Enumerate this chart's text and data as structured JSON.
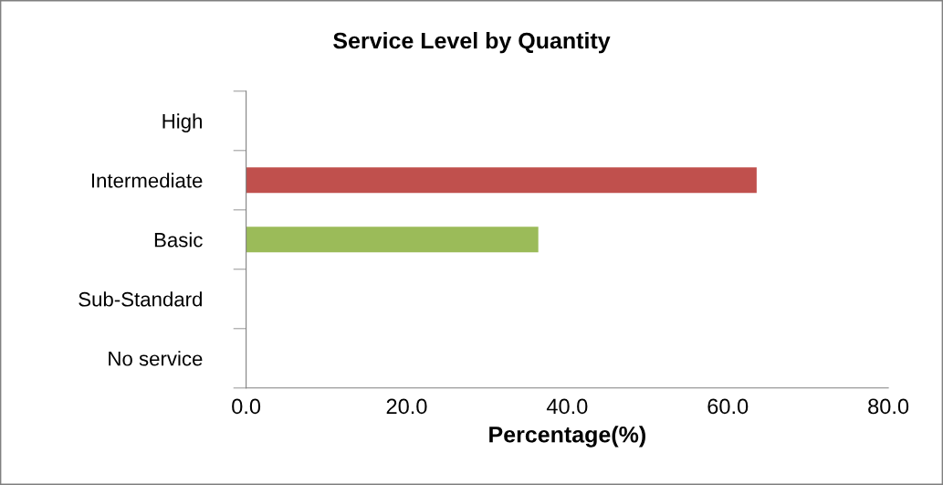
{
  "chart_data": {
    "type": "bar",
    "orientation": "horizontal",
    "title": "Service Level by Quantity",
    "xlabel": "Percentage(%)",
    "categories": [
      "High",
      "Intermediate",
      "Basic",
      "Sub-Standard",
      "No service"
    ],
    "values": [
      0,
      63.6,
      36.4,
      0,
      0
    ],
    "colors": [
      "#4f81bd",
      "#c0504d",
      "#9bbb59",
      "#8064a2",
      "#4bacc6"
    ],
    "xlim": [
      0,
      80
    ],
    "xticks": [
      {
        "value": 0,
        "label": "0.0"
      },
      {
        "value": 20,
        "label": "20.0"
      },
      {
        "value": 40,
        "label": "40.0"
      },
      {
        "value": 60,
        "label": "60.0"
      },
      {
        "value": 80,
        "label": "80.0"
      }
    ],
    "grid": false,
    "legend": false
  }
}
